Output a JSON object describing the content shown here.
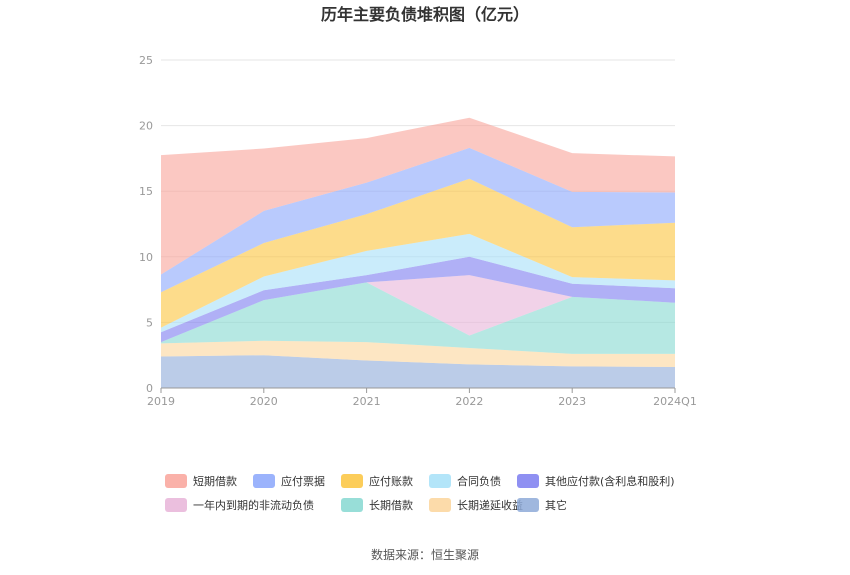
{
  "chart_data": {
    "type": "area",
    "stacked": true,
    "title": "历年主要负债堆积图（亿元）",
    "categories": [
      "2019",
      "2020",
      "2021",
      "2022",
      "2023",
      "2024Q1"
    ],
    "ylim": [
      0,
      25
    ],
    "yticks": [
      0,
      5,
      10,
      15,
      20,
      25
    ],
    "grid": true,
    "legend_position": "bottom",
    "series": [
      {
        "name": "其它",
        "color": "#8eaad8",
        "values": [
          2.4,
          2.5,
          2.1,
          1.8,
          1.65,
          1.6
        ]
      },
      {
        "name": "长期递延收益",
        "color": "#fbd59b",
        "values": [
          1.0,
          1.1,
          1.4,
          1.25,
          0.95,
          1.0
        ]
      },
      {
        "name": "长期借款",
        "color": "#86d8d1",
        "values": [
          0.1,
          3.1,
          4.55,
          0.95,
          4.35,
          3.9
        ]
      },
      {
        "name": "一年内到期的非流动负债",
        "color": "#e8b4d8",
        "values": [
          0.0,
          0.0,
          0.0,
          4.6,
          0.0,
          0.0
        ]
      },
      {
        "name": "其他应付款(含利息和股利)",
        "color": "#7b7cf0",
        "values": [
          0.75,
          0.75,
          0.55,
          1.4,
          1.0,
          1.1
        ]
      },
      {
        "name": "合同负债",
        "color": "#a6e0f8",
        "values": [
          0.35,
          1.05,
          1.85,
          1.75,
          0.5,
          0.6
        ]
      },
      {
        "name": "应付账款",
        "color": "#fcc43d",
        "values": [
          2.7,
          2.55,
          2.8,
          4.2,
          3.8,
          4.4
        ]
      },
      {
        "name": "应付票据",
        "color": "#8aa6fb",
        "values": [
          1.35,
          2.45,
          2.4,
          2.35,
          2.7,
          2.3
        ]
      },
      {
        "name": "短期借款",
        "color": "#f9a39a",
        "values": [
          9.1,
          4.75,
          3.4,
          2.3,
          2.95,
          2.75
        ]
      }
    ],
    "legend_order": [
      "短期借款",
      "应付票据",
      "应付账款",
      "合同负债",
      "其他应付款(含利息和股利)",
      "一年内到期的非流动负债",
      "长期借款",
      "长期递延收益",
      "其它"
    ]
  },
  "source_text": "数据来源：恒生聚源"
}
